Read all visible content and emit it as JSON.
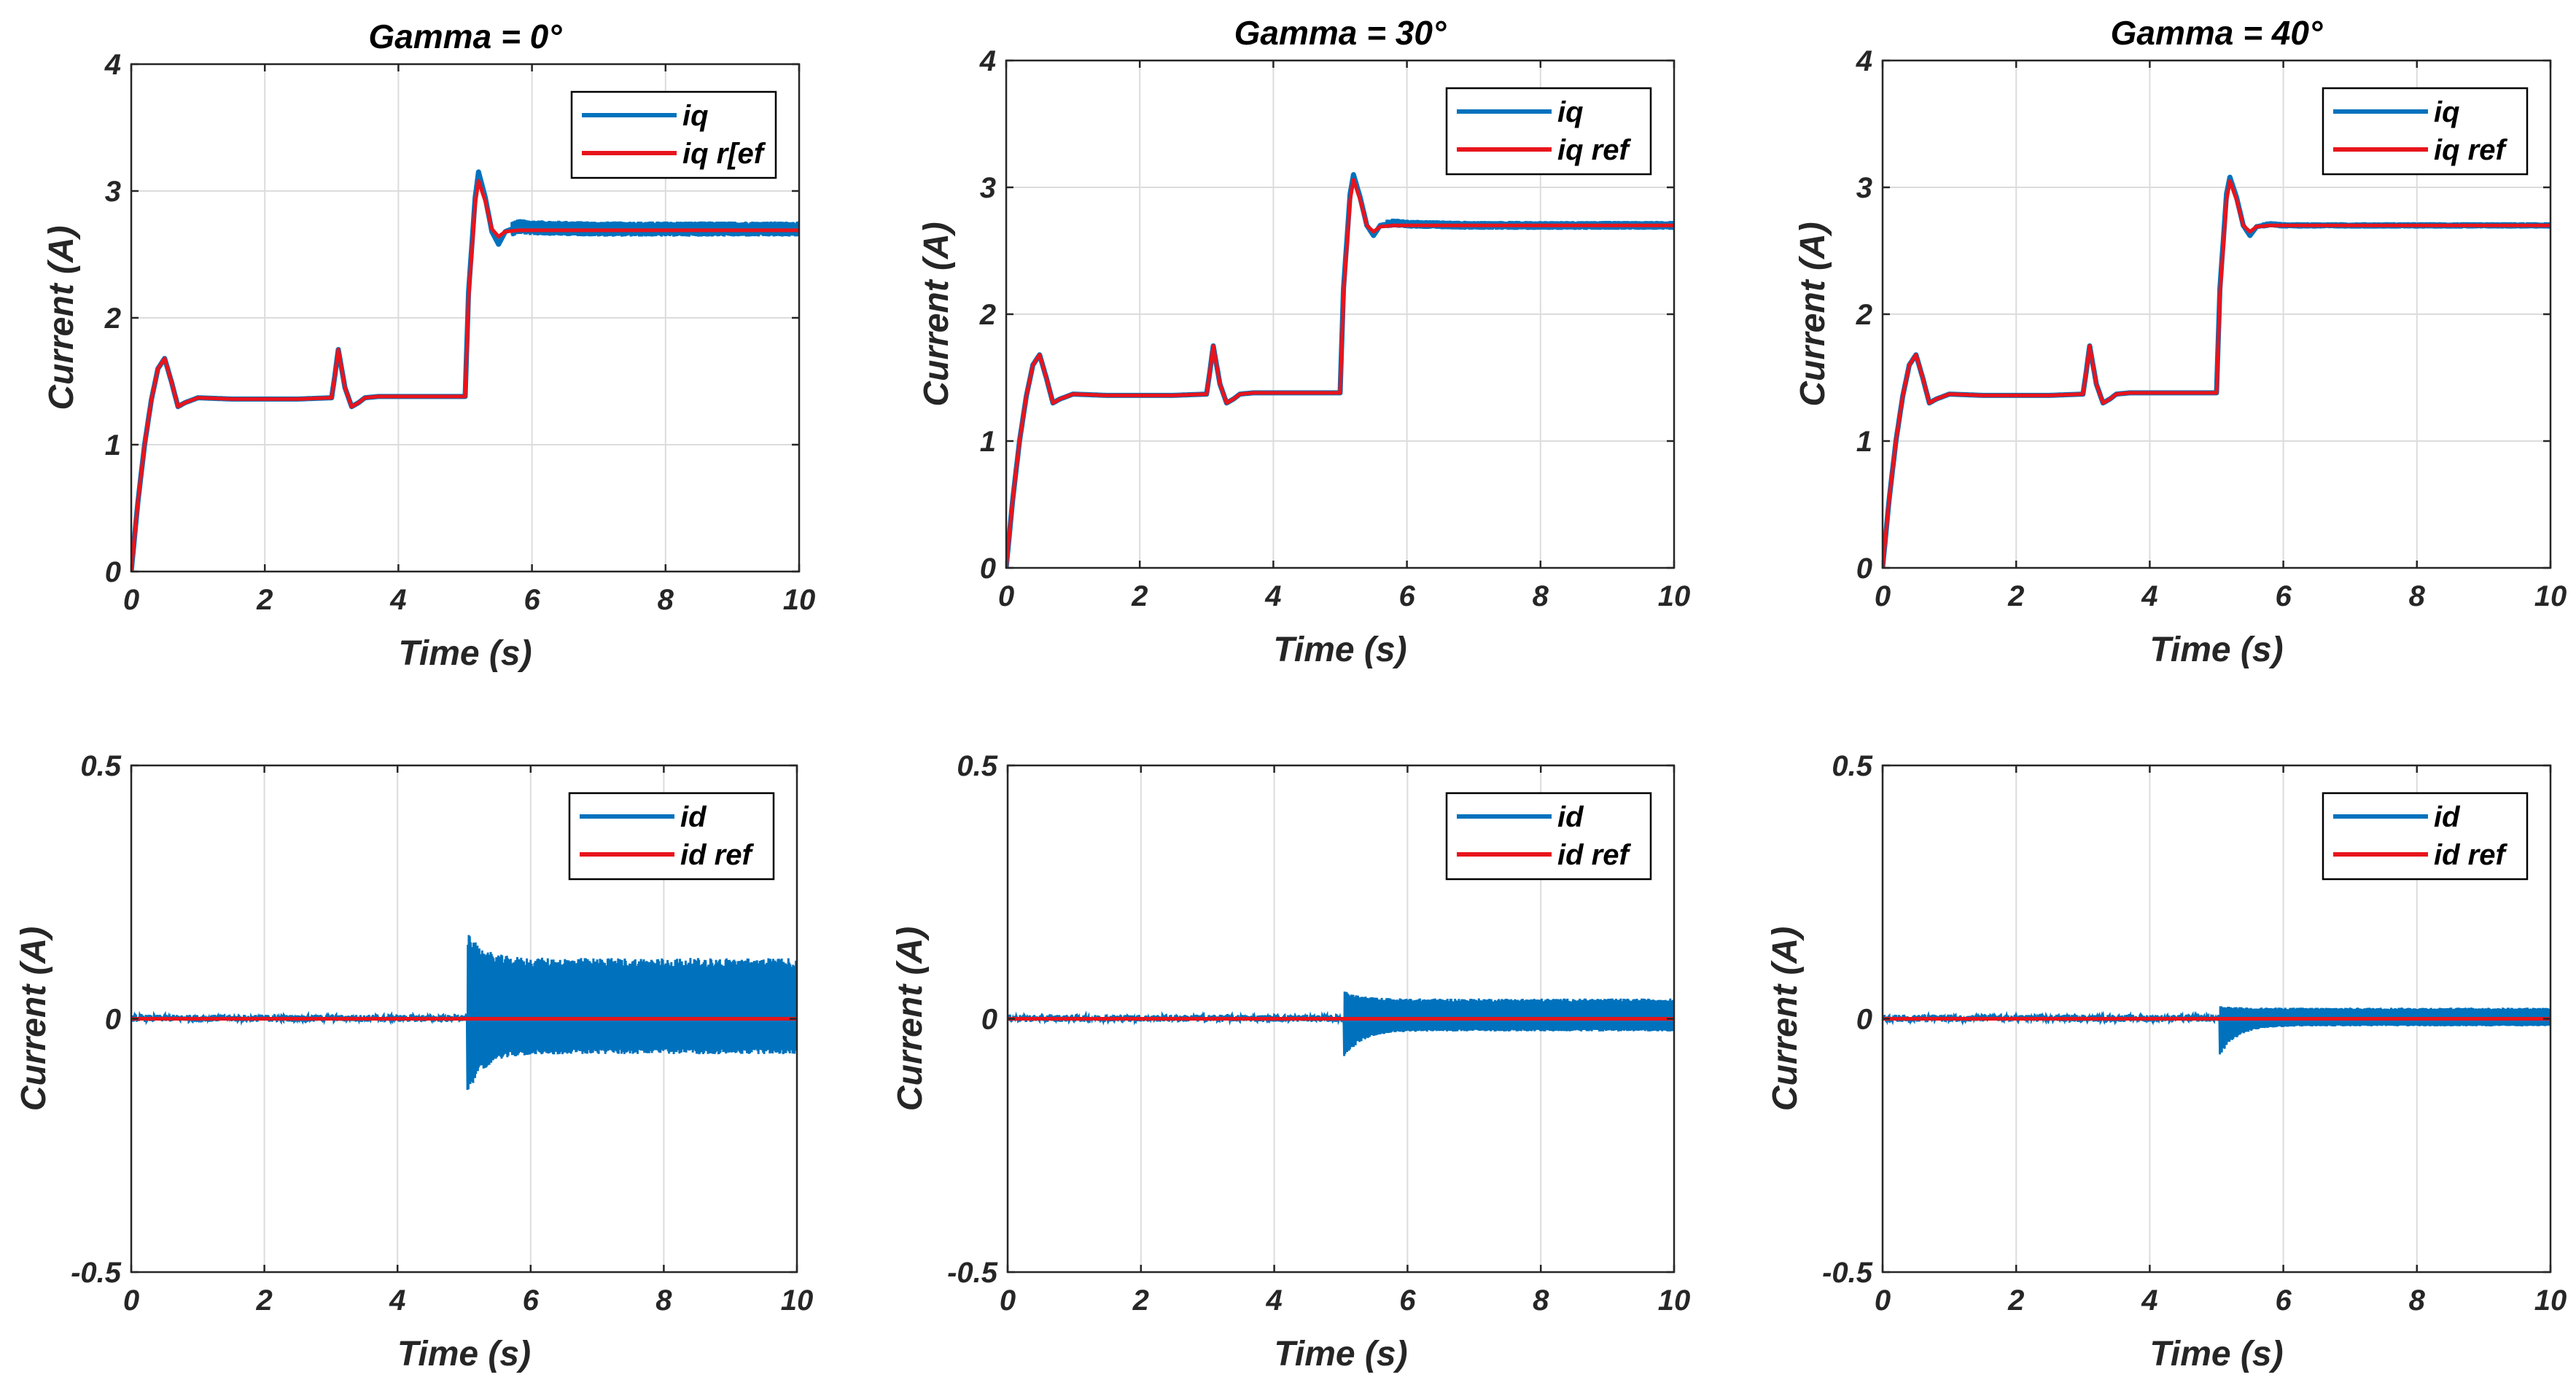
{
  "colors": {
    "meas": "#0072BD",
    "ref": "#E8141C",
    "grid": "#DCDCDC",
    "axes": "#262626"
  },
  "chart_data": [
    {
      "type": "line",
      "title": "Gamma = 0°",
      "xlabel": "Time (s)",
      "ylabel": "Current (A)",
      "xlim": [
        0,
        10
      ],
      "ylim": [
        0,
        4
      ],
      "xticks": [
        0,
        2,
        4,
        6,
        8,
        10
      ],
      "yticks": [
        0,
        1,
        2,
        3,
        4
      ],
      "ytick_labels": [
        "0",
        "1",
        "2",
        "3",
        "4"
      ],
      "grid": true,
      "legend_position": "top-right",
      "series": [
        {
          "name": "iq",
          "color_key": "meas",
          "x": [
            0,
            0.1,
            0.2,
            0.3,
            0.4,
            0.5,
            0.6,
            0.7,
            0.8,
            1.0,
            1.5,
            2.0,
            2.5,
            3.0,
            3.05,
            3.1,
            3.2,
            3.3,
            3.4,
            3.5,
            3.7,
            4.0,
            4.5,
            5.0,
            5.05,
            5.15,
            5.2,
            5.3,
            5.4,
            5.5,
            5.6,
            5.8,
            6.0,
            7.0,
            8.0,
            9.0,
            10.0
          ],
          "values": [
            0,
            0.55,
            1.0,
            1.35,
            1.6,
            1.68,
            1.5,
            1.3,
            1.33,
            1.37,
            1.36,
            1.36,
            1.36,
            1.37,
            1.55,
            1.75,
            1.45,
            1.3,
            1.33,
            1.37,
            1.38,
            1.38,
            1.38,
            1.38,
            2.2,
            2.95,
            3.15,
            2.95,
            2.68,
            2.58,
            2.68,
            2.72,
            2.71,
            2.7,
            2.7,
            2.7,
            2.7
          ],
          "band": 0.06,
          "band_start": 5.7
        },
        {
          "name": "iq r[ef",
          "color_key": "ref",
          "x": [
            0,
            0.1,
            0.2,
            0.3,
            0.4,
            0.5,
            0.6,
            0.7,
            0.8,
            1.0,
            1.5,
            2.0,
            2.5,
            3.0,
            3.05,
            3.1,
            3.2,
            3.3,
            3.4,
            3.5,
            3.7,
            4.0,
            4.5,
            5.0,
            5.05,
            5.15,
            5.2,
            5.3,
            5.4,
            5.5,
            5.6,
            5.8,
            6.0,
            7.0,
            8.0,
            9.0,
            10.0
          ],
          "values": [
            0,
            0.55,
            1.0,
            1.35,
            1.6,
            1.68,
            1.5,
            1.3,
            1.33,
            1.37,
            1.36,
            1.36,
            1.36,
            1.37,
            1.55,
            1.75,
            1.45,
            1.3,
            1.33,
            1.37,
            1.38,
            1.38,
            1.38,
            1.38,
            2.15,
            2.9,
            3.08,
            2.92,
            2.7,
            2.64,
            2.68,
            2.69,
            2.69,
            2.69,
            2.69,
            2.69,
            2.69
          ]
        }
      ]
    },
    {
      "type": "line",
      "title": "Gamma = 30°",
      "xlabel": "Time (s)",
      "ylabel": "Current (A)",
      "xlim": [
        0,
        10
      ],
      "ylim": [
        0,
        4
      ],
      "xticks": [
        0,
        2,
        4,
        6,
        8,
        10
      ],
      "yticks": [
        0,
        1,
        2,
        3,
        4
      ],
      "ytick_labels": [
        "0",
        "1",
        "2",
        "3",
        "4"
      ],
      "grid": true,
      "legend_position": "top-right",
      "series": [
        {
          "name": "iq",
          "color_key": "meas",
          "x": [
            0,
            0.1,
            0.2,
            0.3,
            0.4,
            0.5,
            0.6,
            0.7,
            0.8,
            1.0,
            1.5,
            2.0,
            2.5,
            3.0,
            3.05,
            3.1,
            3.2,
            3.3,
            3.4,
            3.5,
            3.7,
            4.0,
            4.5,
            5.0,
            5.05,
            5.15,
            5.2,
            5.3,
            5.4,
            5.5,
            5.6,
            5.8,
            6.0,
            7.0,
            8.0,
            9.0,
            10.0
          ],
          "values": [
            0,
            0.55,
            1.0,
            1.35,
            1.6,
            1.68,
            1.5,
            1.3,
            1.33,
            1.37,
            1.36,
            1.36,
            1.36,
            1.37,
            1.55,
            1.75,
            1.45,
            1.3,
            1.33,
            1.37,
            1.38,
            1.38,
            1.38,
            1.38,
            2.2,
            2.95,
            3.1,
            2.92,
            2.7,
            2.62,
            2.7,
            2.72,
            2.71,
            2.7,
            2.7,
            2.7,
            2.7
          ],
          "band": 0.035,
          "band_start": 5.7
        },
        {
          "name": "iq ref",
          "color_key": "ref",
          "x": [
            0,
            0.1,
            0.2,
            0.3,
            0.4,
            0.5,
            0.6,
            0.7,
            0.8,
            1.0,
            1.5,
            2.0,
            2.5,
            3.0,
            3.05,
            3.1,
            3.2,
            3.3,
            3.4,
            3.5,
            3.7,
            4.0,
            4.5,
            5.0,
            5.05,
            5.15,
            5.2,
            5.3,
            5.4,
            5.5,
            5.6,
            5.8,
            6.0,
            7.0,
            8.0,
            9.0,
            10.0
          ],
          "values": [
            0,
            0.55,
            1.0,
            1.35,
            1.6,
            1.68,
            1.5,
            1.3,
            1.33,
            1.37,
            1.36,
            1.36,
            1.36,
            1.37,
            1.55,
            1.75,
            1.45,
            1.3,
            1.33,
            1.37,
            1.38,
            1.38,
            1.38,
            1.38,
            2.15,
            2.9,
            3.06,
            2.9,
            2.7,
            2.65,
            2.69,
            2.7,
            2.7,
            2.7,
            2.7,
            2.7,
            2.7
          ]
        }
      ]
    },
    {
      "type": "line",
      "title": "Gamma = 40°",
      "xlabel": "Time (s)",
      "ylabel": "Current (A)",
      "xlim": [
        0,
        10
      ],
      "ylim": [
        0,
        4
      ],
      "xticks": [
        0,
        2,
        4,
        6,
        8,
        10
      ],
      "yticks": [
        0,
        1,
        2,
        3,
        4
      ],
      "ytick_labels": [
        "0",
        "1",
        "2",
        "3",
        "4"
      ],
      "grid": true,
      "legend_position": "top-right",
      "series": [
        {
          "name": "iq",
          "color_key": "meas",
          "x": [
            0,
            0.1,
            0.2,
            0.3,
            0.4,
            0.5,
            0.6,
            0.7,
            0.8,
            1.0,
            1.5,
            2.0,
            2.5,
            3.0,
            3.05,
            3.1,
            3.2,
            3.3,
            3.4,
            3.5,
            3.7,
            4.0,
            4.5,
            5.0,
            5.05,
            5.15,
            5.2,
            5.3,
            5.4,
            5.5,
            5.6,
            5.8,
            6.0,
            7.0,
            8.0,
            9.0,
            10.0
          ],
          "values": [
            0,
            0.55,
            1.0,
            1.35,
            1.6,
            1.68,
            1.5,
            1.3,
            1.33,
            1.37,
            1.36,
            1.36,
            1.36,
            1.37,
            1.55,
            1.75,
            1.45,
            1.3,
            1.33,
            1.37,
            1.38,
            1.38,
            1.38,
            1.38,
            2.2,
            2.95,
            3.08,
            2.92,
            2.7,
            2.62,
            2.69,
            2.71,
            2.7,
            2.7,
            2.7,
            2.7,
            2.7
          ],
          "band": 0.025,
          "band_start": 5.7
        },
        {
          "name": "iq ref",
          "color_key": "ref",
          "x": [
            0,
            0.1,
            0.2,
            0.3,
            0.4,
            0.5,
            0.6,
            0.7,
            0.8,
            1.0,
            1.5,
            2.0,
            2.5,
            3.0,
            3.05,
            3.1,
            3.2,
            3.3,
            3.4,
            3.5,
            3.7,
            4.0,
            4.5,
            5.0,
            5.05,
            5.15,
            5.2,
            5.3,
            5.4,
            5.5,
            5.6,
            5.8,
            6.0,
            7.0,
            8.0,
            9.0,
            10.0
          ],
          "values": [
            0,
            0.55,
            1.0,
            1.35,
            1.6,
            1.68,
            1.5,
            1.3,
            1.33,
            1.37,
            1.36,
            1.36,
            1.36,
            1.37,
            1.55,
            1.75,
            1.45,
            1.3,
            1.33,
            1.37,
            1.38,
            1.38,
            1.38,
            1.38,
            2.15,
            2.9,
            3.05,
            2.9,
            2.7,
            2.65,
            2.69,
            2.7,
            2.7,
            2.7,
            2.7,
            2.7,
            2.7
          ]
        }
      ]
    },
    {
      "type": "line",
      "title": "",
      "xlabel": "Time (s)",
      "ylabel": "Current (A)",
      "xlim": [
        0,
        10
      ],
      "ylim": [
        -0.5,
        0.5
      ],
      "xticks": [
        0,
        2,
        4,
        6,
        8,
        10
      ],
      "yticks": [
        -0.5,
        0,
        0.5
      ],
      "ytick_labels": [
        "-0.5",
        "0",
        "0.5"
      ],
      "grid": true,
      "legend_position": "top-right",
      "series": [
        {
          "name": "id",
          "color_key": "meas",
          "x": [
            0,
            5.0,
            5.05,
            10.0
          ],
          "values": [
            0,
            0,
            0,
            0
          ],
          "noise": {
            "base_low": -0.006,
            "base_high": 0.008,
            "start": 5.05,
            "spike_high": 0.17,
            "spike_low": -0.15,
            "steady_high": 0.12,
            "steady_low": -0.07
          }
        },
        {
          "name": "id ref",
          "color_key": "ref",
          "x": [
            0,
            10.0
          ],
          "values": [
            0,
            0
          ]
        }
      ]
    },
    {
      "type": "line",
      "title": "",
      "xlabel": "Time (s)",
      "ylabel": "Current (A)",
      "xlim": [
        0,
        10
      ],
      "ylim": [
        -0.5,
        0.5
      ],
      "xticks": [
        0,
        2,
        4,
        6,
        8,
        10
      ],
      "yticks": [
        -0.5,
        0,
        0.5
      ],
      "ytick_labels": [
        "-0.5",
        "0",
        "0.5"
      ],
      "grid": true,
      "legend_position": "top-right",
      "series": [
        {
          "name": "id",
          "color_key": "meas",
          "x": [
            0,
            5.0,
            5.05,
            10.0
          ],
          "values": [
            0,
            0,
            0,
            0
          ],
          "noise": {
            "base_low": -0.006,
            "base_high": 0.008,
            "start": 5.05,
            "spike_high": 0.055,
            "spike_low": -0.08,
            "steady_high": 0.04,
            "steady_low": -0.025
          }
        },
        {
          "name": "id ref",
          "color_key": "ref",
          "x": [
            0,
            10.0
          ],
          "values": [
            0,
            0
          ]
        }
      ]
    },
    {
      "type": "line",
      "title": "",
      "xlabel": "Time (s)",
      "ylabel": "Current (A)",
      "xlim": [
        0,
        10
      ],
      "ylim": [
        -0.5,
        0.5
      ],
      "xticks": [
        0,
        2,
        4,
        6,
        8,
        10
      ],
      "yticks": [
        -0.5,
        0,
        0.5
      ],
      "ytick_labels": [
        "-0.5",
        "0",
        "0.5"
      ],
      "grid": true,
      "legend_position": "top-right",
      "series": [
        {
          "name": "id",
          "color_key": "meas",
          "x": [
            0,
            5.0,
            5.05,
            10.0
          ],
          "values": [
            0,
            0,
            0,
            0
          ],
          "noise": {
            "base_low": -0.006,
            "base_high": 0.008,
            "start": 5.05,
            "spike_high": 0.025,
            "spike_low": -0.075,
            "steady_high": 0.022,
            "steady_low": -0.015
          }
        },
        {
          "name": "id ref",
          "color_key": "ref",
          "x": [
            0,
            10.0
          ],
          "values": [
            0,
            0
          ]
        }
      ]
    }
  ]
}
